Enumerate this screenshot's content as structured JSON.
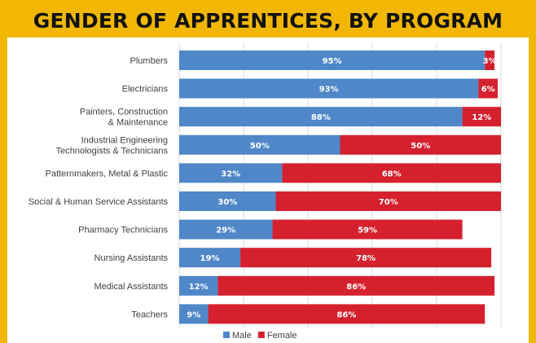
{
  "title": "GENDER OF APPRENTICES, BY PROGRAM",
  "colors": {
    "frame": "#F2B705",
    "male": "#4F87C8",
    "female": "#D5202E",
    "grid": "#D9D9D9"
  },
  "chart_data": {
    "type": "bar",
    "orientation": "horizontal",
    "stacked": true,
    "title": "GENDER OF APPRENTICES, BY PROGRAM",
    "categories": [
      [
        "Plumbers"
      ],
      [
        "Electricians"
      ],
      [
        "Painters, Construction",
        "& Maintenance"
      ],
      [
        "Industrial Engineering",
        "Technologists & Technicians"
      ],
      [
        "Patternmakers, Metal & Plastic"
      ],
      [
        "Social & Human Service Assistants"
      ],
      [
        "Pharmacy Technicians"
      ],
      [
        "Nursing Assistants"
      ],
      [
        "Medical Assistants"
      ],
      [
        "Teachers"
      ]
    ],
    "series": [
      {
        "name": "Male",
        "color": "#4F87C8",
        "values": [
          95,
          93,
          88,
          50,
          32,
          30,
          29,
          19,
          12,
          9
        ],
        "labels": [
          "95%",
          "93%",
          "88%",
          "50%",
          "32%",
          "30%",
          "29%",
          "19%",
          "12%",
          "9%"
        ]
      },
      {
        "name": "Female",
        "color": "#D5202E",
        "values": [
          3,
          6,
          12,
          50,
          68,
          70,
          59,
          78,
          86,
          86
        ],
        "labels": [
          "3%",
          "6%",
          "12%",
          "50%",
          "68%",
          "70%",
          "59%",
          "78%",
          "86%",
          "86%"
        ]
      }
    ],
    "xlim": [
      0,
      100
    ],
    "grid": true,
    "legend": "bottom-center"
  }
}
